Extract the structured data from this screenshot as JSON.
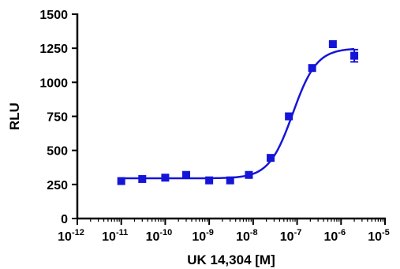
{
  "chart_data": {
    "type": "scatter",
    "title": "",
    "xlabel": "UK 14,304 [M]",
    "ylabel": "RLU",
    "x_scale": "log",
    "xlim": [
      1e-12,
      1e-05
    ],
    "ylim": [
      0,
      1500
    ],
    "x_ticks": [
      1e-12,
      1e-11,
      1e-10,
      1e-09,
      1e-08,
      1e-07,
      1e-06,
      1e-05
    ],
    "x_tick_labels": [
      {
        "base": "10",
        "exp": "-12"
      },
      {
        "base": "10",
        "exp": "-11"
      },
      {
        "base": "10",
        "exp": "-10"
      },
      {
        "base": "10",
        "exp": "-9"
      },
      {
        "base": "10",
        "exp": "-8"
      },
      {
        "base": "10",
        "exp": "-7"
      },
      {
        "base": "10",
        "exp": "-6"
      },
      {
        "base": "10",
        "exp": "-5"
      }
    ],
    "y_ticks": [
      0,
      250,
      500,
      750,
      1000,
      1250,
      1500
    ],
    "y_tick_labels": [
      "0",
      "250",
      "500",
      "750",
      "1000",
      "1250",
      "1500"
    ],
    "grid": false,
    "legend": "none",
    "marker_color": "#1515d8",
    "series": [
      {
        "x": [
          1e-11,
          3e-11,
          1e-10,
          3e-10,
          1e-09,
          3e-09,
          8e-09,
          2.5e-08,
          6.5e-08,
          2.2e-07,
          6.5e-07,
          2e-06
        ],
        "y": [
          275,
          290,
          300,
          320,
          280,
          280,
          320,
          445,
          750,
          1105,
          1280,
          1195
        ],
        "error": [
          0,
          0,
          0,
          0,
          0,
          0,
          0,
          0,
          0,
          0,
          0,
          45
        ]
      }
    ],
    "fit": {
      "type": "sigmoid",
      "bottom": 295,
      "top": 1250,
      "ec50": 8e-08,
      "hill": 1.6,
      "x_range": [
        1e-11,
        2e-06
      ]
    }
  }
}
